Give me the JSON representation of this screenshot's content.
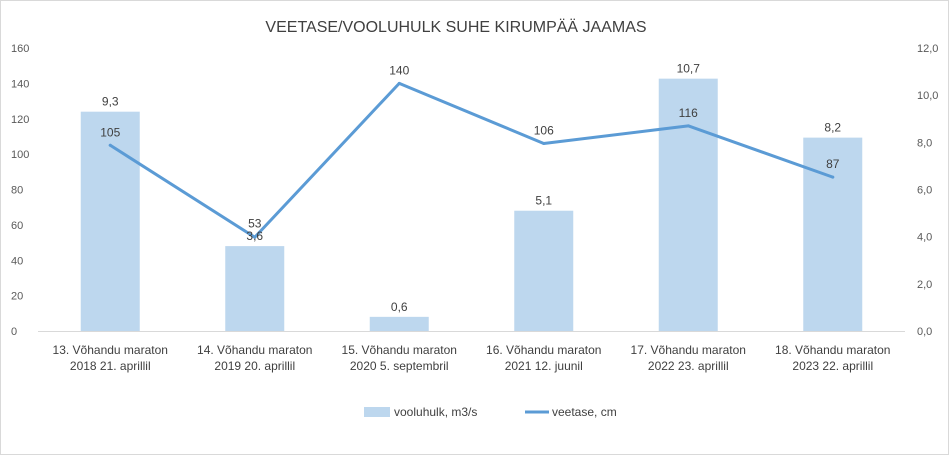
{
  "chart_data": {
    "type": "bar+line",
    "title": "VEETASE/VOOLUHULK SUHE KIRUMPÄÄ JAAMAS",
    "categories": [
      [
        "13. Võhandu maraton",
        "2018 21. aprillil"
      ],
      [
        "14. Võhandu maraton",
        "2019 20. aprillil"
      ],
      [
        "15. Võhandu maraton",
        "2020 5. septembril"
      ],
      [
        "16. Võhandu maraton",
        "2021 12. juunil"
      ],
      [
        "17. Võhandu maraton",
        "2022 23. aprillil"
      ],
      [
        "18. Võhandu maraton",
        "2023 22. aprillil"
      ]
    ],
    "series": [
      {
        "name": "vooluhulk, m3/s",
        "type": "bar",
        "axis": "right",
        "color": "#bdd7ee",
        "values": [
          9.3,
          3.6,
          0.6,
          5.1,
          10.7,
          8.2
        ],
        "labels": [
          "9,3",
          "3,6",
          "0,6",
          "5,1",
          "10,7",
          "8,2"
        ]
      },
      {
        "name": "veetase, cm",
        "type": "line",
        "axis": "left",
        "color": "#5b9bd5",
        "values": [
          105,
          53,
          140,
          106,
          116,
          87
        ],
        "labels": [
          "105",
          "53",
          "140",
          "106",
          "116",
          "87"
        ]
      }
    ],
    "y_left": {
      "min": 0,
      "max": 160,
      "ticks": [
        "0",
        "20",
        "40",
        "60",
        "80",
        "100",
        "120",
        "140",
        "160"
      ]
    },
    "y_right": {
      "min": 0,
      "max": 12,
      "ticks": [
        "0,0",
        "2,0",
        "4,0",
        "6,0",
        "8,0",
        "10,0",
        "12,0"
      ]
    },
    "grid": false,
    "legend_position": "bottom"
  }
}
